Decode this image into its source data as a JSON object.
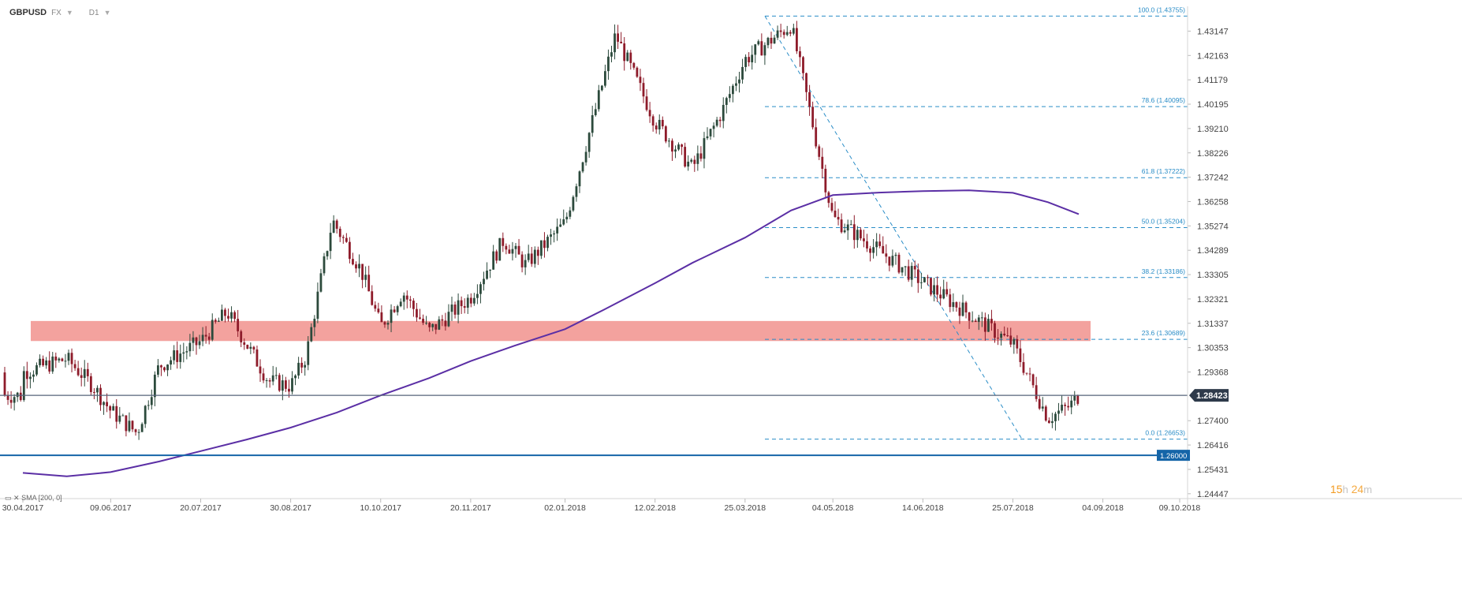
{
  "header": {
    "symbol": "GBPUSD",
    "market": "FX",
    "timeframe": "D1"
  },
  "indicator": {
    "label": "SMA [200, 0]"
  },
  "countdown": {
    "hours": "15",
    "hours_unit": "h",
    "minutes": "24",
    "minutes_unit": "m"
  },
  "colors": {
    "up_candle": "#2c4a3c",
    "down_candle": "#8e1b2a",
    "sma": "#5b2fa5",
    "fib_line": "#2a8dc7",
    "zone": "#f08b86",
    "price_line": "#56647a",
    "level_line": "#1565a8",
    "price_badge": "#2e3a4a",
    "level_badge": "#1565a8"
  },
  "chart_data": {
    "type": "candlestick",
    "symbol": "GBPUSD",
    "timeframe": "D1",
    "y_ticks": [
      "1.43147",
      "1.42163",
      "1.41179",
      "1.40195",
      "1.39210",
      "1.38226",
      "1.37242",
      "1.36258",
      "1.35274",
      "1.34289",
      "1.33305",
      "1.32321",
      "1.31337",
      "1.30353",
      "1.29368",
      "1.27400",
      "1.26416",
      "1.25431",
      "1.24447"
    ],
    "x_ticks": [
      "30.04.2017",
      "09.06.2017",
      "20.07.2017",
      "30.08.2017",
      "10.10.2017",
      "20.11.2017",
      "02.01.2018",
      "12.02.2018",
      "25.03.2018",
      "04.05.2018",
      "14.06.2018",
      "25.07.2018",
      "04.09.2018",
      "09.10.2018"
    ],
    "ylim": [
      1.2425,
      1.4415
    ],
    "current_price": {
      "value": 1.28423,
      "label": "1.28423"
    },
    "horizontal_level": {
      "value": 1.26,
      "label": "1.26000"
    },
    "resistance_zone": {
      "from": 1.3062,
      "to": 1.3143
    },
    "fibonacci": [
      {
        "level": "100.0",
        "price": 1.43755,
        "label": "100.0 (1.43755)"
      },
      {
        "level": "78.6",
        "price": 1.40095,
        "label": "78.6 (1.40095)"
      },
      {
        "level": "61.8",
        "price": 1.37222,
        "label": "61.8 (1.37222)"
      },
      {
        "level": "50.0",
        "price": 1.35204,
        "label": "50.0 (1.35204)"
      },
      {
        "level": "38.2",
        "price": 1.33186,
        "label": "38.2 (1.33186)"
      },
      {
        "level": "23.6",
        "price": 1.30689,
        "label": "23.6 (1.30689)"
      },
      {
        "level": "0.0",
        "price": 1.26653,
        "label": "0.0 (1.26653)"
      }
    ],
    "sma_200": [
      [
        "30.04.2017",
        1.2529
      ],
      [
        "20.05.2017",
        1.2515
      ],
      [
        "09.06.2017",
        1.2532
      ],
      [
        "01.07.2017",
        1.2575
      ],
      [
        "20.07.2017",
        1.2617
      ],
      [
        "10.08.2017",
        1.2664
      ],
      [
        "30.08.2017",
        1.2712
      ],
      [
        "20.09.2017",
        1.2773
      ],
      [
        "10.10.2017",
        1.2842
      ],
      [
        "01.11.2017",
        1.2912
      ],
      [
        "20.11.2017",
        1.2981
      ],
      [
        "10.12.2017",
        1.3043
      ],
      [
        "02.01.2018",
        1.311
      ],
      [
        "20.01.2018",
        1.319
      ],
      [
        "12.02.2018",
        1.3296
      ],
      [
        "01.03.2018",
        1.3378
      ],
      [
        "25.03.2018",
        1.348
      ],
      [
        "15.04.2018",
        1.359
      ],
      [
        "04.05.2018",
        1.3652
      ],
      [
        "25.05.2018",
        1.3662
      ],
      [
        "14.06.2018",
        1.3668
      ],
      [
        "05.07.2018",
        1.3671
      ],
      [
        "25.07.2018",
        1.3661
      ],
      [
        "10.08.2018",
        1.3623
      ],
      [
        "24.08.2018",
        1.3575
      ]
    ],
    "price_path": [
      [
        "30.04.2017",
        1.2935
      ],
      [
        "20.05.2017",
        1.299
      ],
      [
        "01.06.2017",
        1.288
      ],
      [
        "09.06.2017",
        1.278
      ],
      [
        "21.06.2017",
        1.269
      ],
      [
        "01.07.2017",
        1.296
      ],
      [
        "20.07.2017",
        1.306
      ],
      [
        "01.08.2017",
        1.318
      ],
      [
        "20.08.2017",
        1.29
      ],
      [
        "30.08.2017",
        1.288
      ],
      [
        "06.09.2017",
        1.3
      ],
      [
        "18.09.2017",
        1.355
      ],
      [
        "01.10.2017",
        1.335
      ],
      [
        "10.10.2017",
        1.312
      ],
      [
        "20.10.2017",
        1.326
      ],
      [
        "01.11.2017",
        1.31
      ],
      [
        "20.11.2017",
        1.324
      ],
      [
        "05.12.2017",
        1.347
      ],
      [
        "15.12.2017",
        1.337
      ],
      [
        "02.01.2018",
        1.354
      ],
      [
        "25.01.2018",
        1.43
      ],
      [
        "12.02.2018",
        1.395
      ],
      [
        "01.03.2018",
        1.376
      ],
      [
        "15.03.2018",
        1.4
      ],
      [
        "25.03.2018",
        1.42
      ],
      [
        "15.04.2018",
        1.434
      ],
      [
        "04.05.2018",
        1.356
      ],
      [
        "14.06.2018",
        1.33
      ],
      [
        "25.07.2018",
        1.305
      ],
      [
        "10.08.2018",
        1.275
      ],
      [
        "20.08.2018",
        1.28
      ],
      [
        "24.08.2018",
        1.2842
      ]
    ]
  }
}
